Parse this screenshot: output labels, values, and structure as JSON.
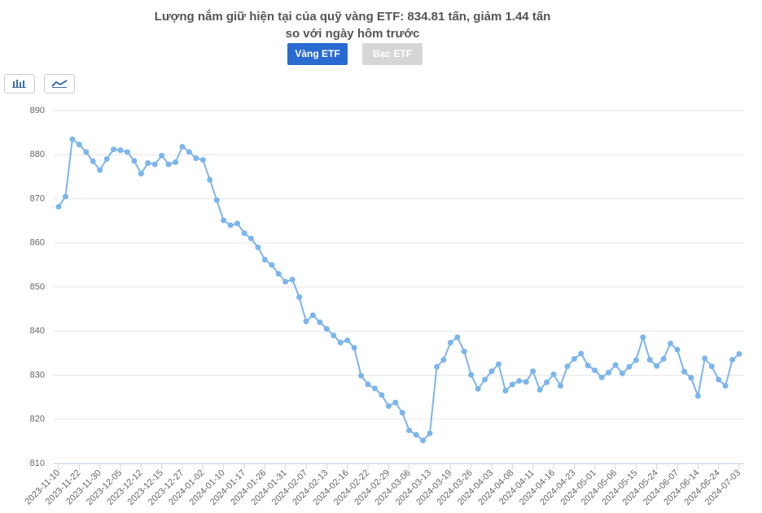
{
  "chart_data": {
    "type": "line",
    "title": "Lượng nắm giữ hiện tại của quỹ vàng ETF: 834.81 tấn, giảm 1.44 tấn so với ngày hôm trước",
    "tabs": [
      "Vàng ETF",
      "Bạc ETF"
    ],
    "categories": [
      "2023-11-10",
      null,
      null,
      "2023-11-22",
      null,
      null,
      "2023-11-30",
      null,
      null,
      "2023-12-05",
      null,
      null,
      "2023-12-12",
      null,
      null,
      "2023-12-15",
      null,
      null,
      "2023-12-27",
      null,
      null,
      "2024-01-02",
      null,
      null,
      "2024-01-10",
      null,
      null,
      "2024-01-17",
      null,
      null,
      "2024-01-26",
      null,
      null,
      "2024-01-31",
      null,
      null,
      "2024-02-07",
      null,
      null,
      "2024-02-13",
      null,
      null,
      "2024-02-16",
      null,
      null,
      "2024-02-22",
      null,
      null,
      "2024-02-29",
      null,
      null,
      "2024-03-06",
      null,
      null,
      "2024-03-13",
      null,
      null,
      "2024-03-19",
      null,
      null,
      "2024-03-26",
      null,
      null,
      "2024-04-03",
      null,
      null,
      "2024-04-08",
      null,
      null,
      "2024-04-11",
      null,
      null,
      "2024-04-16",
      null,
      null,
      "2024-04-23",
      null,
      null,
      "2024-05-01",
      null,
      null,
      "2024-05-06",
      null,
      null,
      "2024-05-15",
      null,
      null,
      "2024-05-24",
      null,
      null,
      "2024-06-07",
      null,
      null,
      "2024-06-14",
      null,
      null,
      "2024-06-24",
      null,
      null,
      "2024-07-03"
    ],
    "values": [
      868.2,
      870.5,
      883.5,
      882.3,
      880.6,
      878.5,
      876.5,
      879,
      881.2,
      881,
      880.6,
      878.6,
      875.7,
      878.1,
      877.8,
      879.8,
      877.8,
      878.3,
      881.8,
      880.6,
      879.2,
      878.8,
      874.3,
      869.7,
      865.1,
      864,
      864.4,
      862.2,
      861,
      859,
      856.2,
      855,
      853,
      851.2,
      851.7,
      847.7,
      842.2,
      843.6,
      842,
      840.5,
      839,
      837.4,
      837.9,
      836.2,
      829.9,
      827.9,
      827,
      825.5,
      823,
      823.8,
      821.5,
      817.5,
      816.5,
      815.2,
      816.8,
      831.9,
      833.5,
      837.4,
      838.6,
      835.4,
      830.1,
      826.9,
      829,
      830.9,
      832.5,
      826.5,
      827.9,
      828.7,
      828.5,
      830.9,
      826.7,
      828.4,
      830.2,
      827.6,
      832,
      833.7,
      834.9,
      832.2,
      831.1,
      829.5,
      830.6,
      832.3,
      830.4,
      831.9,
      833.4,
      838.6,
      833.5,
      832.1,
      833.7,
      837.2,
      835.8,
      830.8,
      829.4,
      825.3,
      833.8,
      832,
      829,
      827.6,
      833.5,
      834.81
    ],
    "color": "#7cb5ec",
    "ylim": [
      810,
      890
    ],
    "yticks": [
      810,
      820,
      830,
      840,
      850,
      860,
      870,
      880,
      890
    ],
    "grid": true
  }
}
